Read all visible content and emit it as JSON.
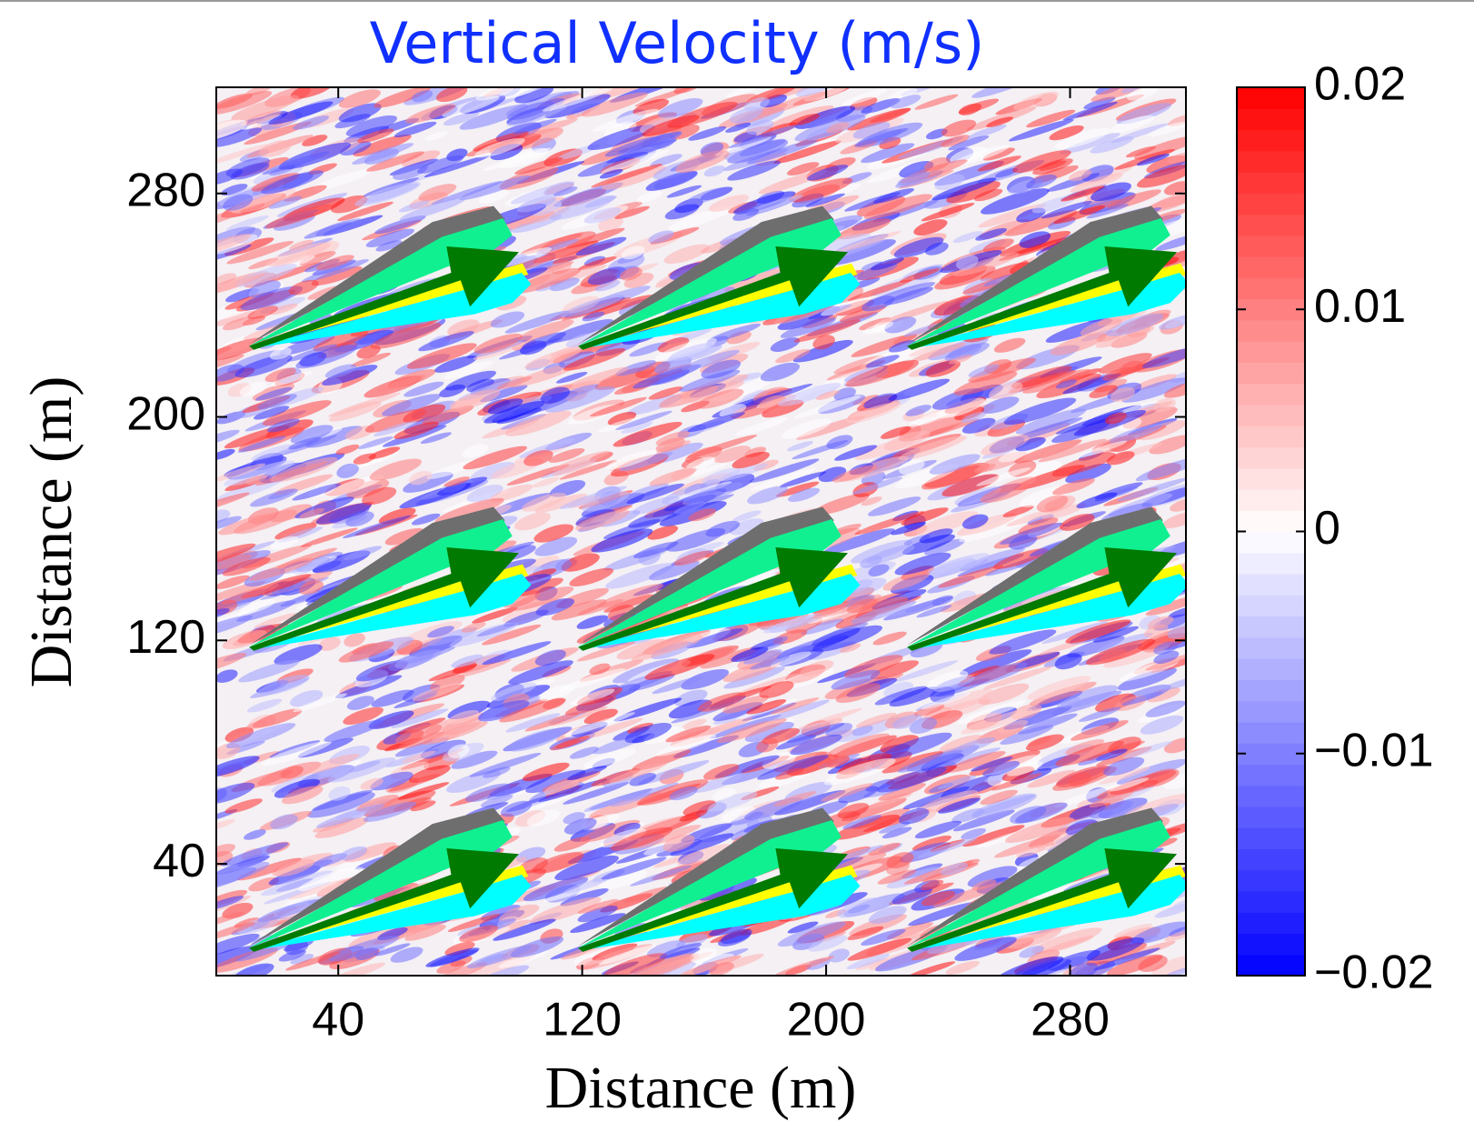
{
  "chart_data": {
    "type": "contour",
    "title": "Vertical Velocity (m/s)",
    "x_label": "Distance (m)",
    "y_label": "Distance (m)",
    "xlim": [
      0,
      318
    ],
    "ylim": [
      0,
      318
    ],
    "xticks": [
      40,
      120,
      200,
      280
    ],
    "yticks": [
      40,
      120,
      200,
      280
    ],
    "clim": [
      -0.02,
      0.02
    ],
    "cticks": [
      {
        "value": -0.02,
        "label": "−0.02"
      },
      {
        "value": -0.01,
        "label": "−0.01"
      },
      0,
      0.01,
      0.02
    ],
    "colormap": [
      "#0000ff",
      "#ffffff",
      "#ff0000"
    ]
  }
}
